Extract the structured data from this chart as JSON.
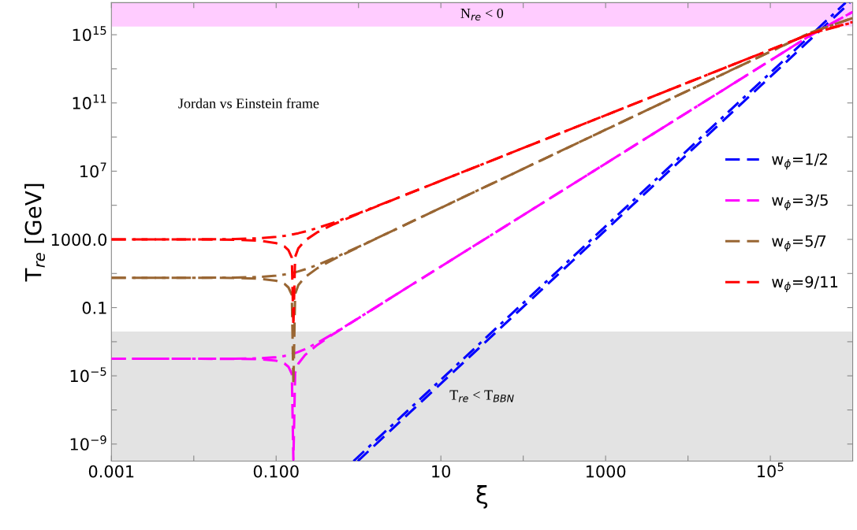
{
  "chart_data": {
    "type": "line",
    "xlabel": "ξ",
    "ylabel": "T$_{re}$ [GeV]",
    "log": "xy",
    "grid": false,
    "legend": "center right",
    "xlim": [
      0.001,
      1000000
    ],
    "ylim": [
      1e-10,
      7.6e+16
    ],
    "xticks": [
      0.001,
      {
        "value": 0.01,
        "label": null
      },
      {
        "value": 0.1,
        "label": "0.100"
      },
      {
        "value": 1,
        "label": null
      },
      10,
      {
        "value": 100,
        "label": null
      },
      1000,
      {
        "value": 10000,
        "label": null
      },
      {
        "value": 100000,
        "label": "10$^{5}$"
      }
    ],
    "yticks": [
      {
        "value": 1e-09,
        "label": "10$^{−9}$"
      },
      {
        "value": 1e-07,
        "label": null
      },
      {
        "value": 1e-05,
        "label": "10$^{−5}$"
      },
      {
        "value": 0.001,
        "label": null
      },
      0.1,
      {
        "value": 10,
        "label": null
      },
      {
        "value": 1000,
        "label": "1000.0"
      },
      {
        "value": 100000,
        "label": null
      },
      {
        "value": 10000000.0,
        "label": "10$^{7}$"
      },
      {
        "value": 1000000000.0,
        "label": null
      },
      {
        "value": 100000000000.0,
        "label": "10$^{11}$"
      },
      {
        "value": 10000000000000.0,
        "label": null
      },
      {
        "value": 1000000000000000.0,
        "label": "10$^{15}$"
      }
    ],
    "bands": [
      {
        "axis": "y",
        "from": 3000000000000000.0,
        "to": 7.6e+16,
        "label": "N$_{re}$ < 0",
        "color": "#ffccff"
      },
      {
        "axis": "y",
        "from": 1e-10,
        "to": 0.004,
        "label": "T$_{re}$ < T$_{BBN}$",
        "color": "#e3e3e3"
      }
    ],
    "annotations": [
      "Jordan vs Einstein frame"
    ],
    "series": [
      {
        "name": "w$_{ϕ}$=1/2",
        "color": "#0000ff",
        "line_style": "dashed",
        "x": [
          0.98,
          100,
          920000
        ],
        "values": [
          1e-10,
          0.111,
          7.5e+16
        ]
      },
      {
        "color": "#0000ff",
        "line_style": "dashdot",
        "x": [
          0.87,
          100,
          820000
        ],
        "values": [
          1e-10,
          0.186,
          7.5e+16
        ]
      },
      {
        "name": "w$_{ϕ}$=3/5",
        "color": "#ff00ff",
        "line_style": "dashed",
        "x": [
          0.001,
          0.01,
          0.0316,
          0.0631,
          0.1,
          0.126,
          0.141,
          0.155,
          0.162,
          0.17,
          0.186,
          0.224,
          0.316,
          0.501,
          1,
          3.16,
          10,
          100,
          1000,
          10000,
          100000,
          316000,
          1000000
        ],
        "values": [
          0.0001,
          0.0001,
          9.93e-05,
          9.42e-05,
          7.67e-05,
          5.35e-05,
          3.4e-05,
          1.3e-05,
          1.2e-10,
          1.49e-05,
          5.16e-05,
          0.000165,
          0.000652,
          0.00292,
          0.0242,
          0.787,
          25.5,
          26700,
          27900000.0,
          29500000000.0,
          30900000000000.0,
          1000000000000000.0,
          2.2e+16
        ]
      },
      {
        "color": "#ff00ff",
        "line_style": "dashdot",
        "x": [
          0.001,
          0.01,
          0.0316,
          0.0631,
          0.1,
          0.126,
          0.141,
          0.155,
          0.162,
          0.17,
          0.186,
          0.224,
          0.316,
          0.501,
          1,
          3.16,
          10,
          100,
          1000,
          10000,
          100000,
          316000,
          1000000
        ],
        "values": [
          0.0001,
          0.0001,
          0.0001007,
          0.0001057,
          0.0001233,
          0.0001466,
          0.000166,
          0.000187,
          0.0002,
          0.000215,
          0.000252,
          0.000365,
          0.000851,
          0.00312,
          0.0243,
          0.787,
          25.5,
          26700,
          27900000.0,
          29500000000.0,
          30900000000000.0,
          1000000000000000.0,
          2.2e+16
        ]
      },
      {
        "name": "w$_{ϕ}$=5/7",
        "color": "#996633",
        "line_style": "dashed",
        "x": [
          0.001,
          0.01,
          0.0316,
          0.0631,
          0.1,
          0.126,
          0.141,
          0.155,
          0.162,
          0.17,
          0.186,
          0.224,
          0.316,
          0.501,
          1,
          3.16,
          10,
          100,
          1000,
          10000,
          100000,
          316000,
          1000000
        ],
        "values": [
          5.62,
          5.61,
          5.5,
          4.98,
          3.77,
          2.48,
          1.52,
          0.562,
          3e-06,
          0.624,
          2.09,
          6.14,
          20.3,
          68.9,
          356,
          5060,
          70600,
          13800000.0,
          2690000000.0,
          525000000000.0,
          102000000000000.0,
          1410000000000000.0,
          9500000000000000.0
        ]
      },
      {
        "color": "#996633",
        "line_style": "dashdot",
        "x": [
          0.001,
          0.01,
          0.0316,
          0.0631,
          0.1,
          0.126,
          0.141,
          0.155,
          0.162,
          0.17,
          0.186,
          0.224,
          0.316,
          0.501,
          1,
          3.16,
          10,
          100,
          1000,
          10000,
          100000,
          316000,
          1000000
        ],
        "values": [
          5.62,
          5.64,
          5.75,
          6.27,
          7.48,
          8.77,
          9.73,
          10.7,
          11.2,
          11.9,
          13.3,
          17.4,
          31.6,
          80.2,
          368,
          5060,
          70600,
          13800000.0,
          2690000000.0,
          525000000000.0,
          102000000000000.0,
          1410000000000000.0,
          9500000000000000.0
        ]
      },
      {
        "name": "w$_{ϕ}$=9/11",
        "color": "#ff0000",
        "line_style": "dashed",
        "x": [
          0.001,
          0.01,
          0.0316,
          0.0631,
          0.1,
          0.126,
          0.141,
          0.155,
          0.162,
          0.17,
          0.186,
          0.224,
          0.316,
          0.501,
          1,
          3.16,
          10,
          100,
          1000,
          10000,
          100000,
          316000,
          1000000
        ],
        "values": [
          1000,
          1000,
          957,
          838,
          603,
          385,
          233,
          85,
          0.0085,
          93,
          303,
          857,
          2600,
          7727,
          31900,
          300000,
          2740000.0,
          228000000.0,
          19000000000.0,
          1580000000000.0,
          132000000000000.0,
          1200000000000000.0,
          5600000000000000.0
        ]
      },
      {
        "color": "#ff0000",
        "line_style": "dashdot",
        "x": [
          0.001,
          0.01,
          0.0316,
          0.0631,
          0.1,
          0.126,
          0.141,
          0.155,
          0.162,
          0.17,
          0.186,
          0.224,
          0.316,
          0.501,
          1,
          3.16,
          10,
          100,
          1000,
          10000,
          100000,
          316000,
          1000000
        ],
        "values": [
          1000,
          1000,
          1042,
          1164,
          1396,
          1614,
          1766,
          1914,
          2000,
          2094,
          2301,
          2858,
          4603,
          9727,
          33900,
          301000,
          2740000.0,
          228000000.0,
          19000000000.0,
          1580000000000.0,
          132000000000000.0,
          1200000000000000.0,
          5200000000000000.0
        ]
      }
    ]
  }
}
